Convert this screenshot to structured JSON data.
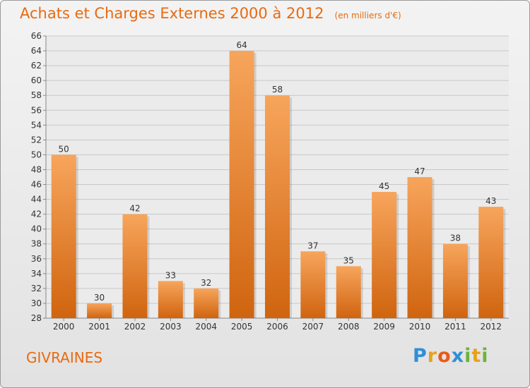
{
  "title": "Achats et Charges Externes 2000 à 2012",
  "subtitle": "(en milliers d'€)",
  "commune": "GIVRAINES",
  "logo": {
    "text": "Proxiti",
    "letters": [
      {
        "ch": "P",
        "color": "#2f8fd8"
      },
      {
        "ch": "r",
        "color": "#e8a21a"
      },
      {
        "ch": "o",
        "color": "#e85a1a"
      },
      {
        "ch": "x",
        "color": "#2f8fd8"
      },
      {
        "ch": "i",
        "color": "#6cb33f"
      },
      {
        "ch": "t",
        "color": "#e8a21a"
      },
      {
        "ch": "i",
        "color": "#6cb33f"
      }
    ]
  },
  "colors": {
    "accent": "#e86a10",
    "bar_top": "#f7a55c",
    "bar_bottom": "#d0640f",
    "grid": "#c8c8c8"
  },
  "chart_data": {
    "type": "bar",
    "title": "Achats et Charges Externes 2000 à 2012",
    "subtitle": "(en milliers d'€)",
    "categories": [
      "2000",
      "2001",
      "2002",
      "2003",
      "2004",
      "2005",
      "2006",
      "2007",
      "2008",
      "2009",
      "2010",
      "2011",
      "2012"
    ],
    "values": [
      50,
      30,
      42,
      33,
      32,
      64,
      58,
      37,
      35,
      45,
      47,
      38,
      43
    ],
    "ylim": [
      28,
      66
    ],
    "ytick_step": 2,
    "grid": true,
    "data_labels": true,
    "xlabel": "",
    "ylabel": ""
  }
}
